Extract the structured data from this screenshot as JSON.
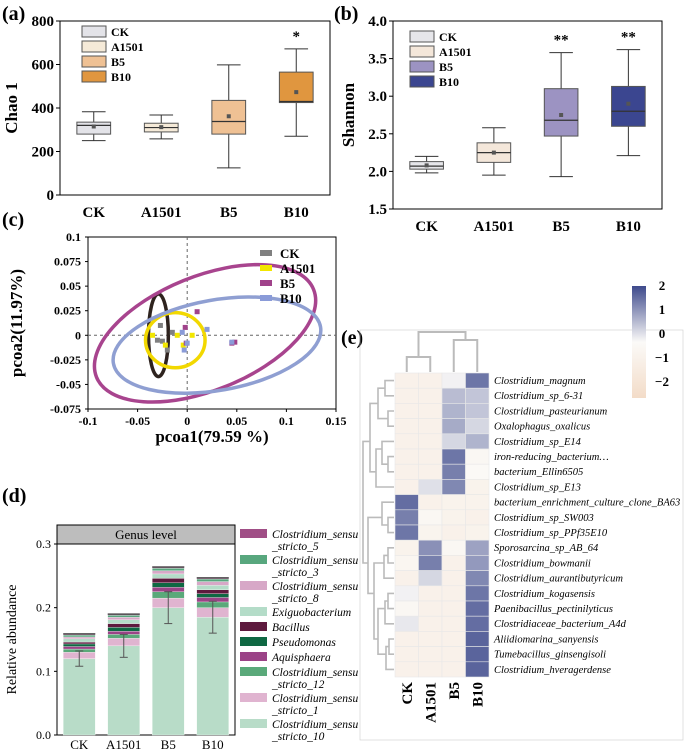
{
  "chart_data": [
    {
      "id": "a",
      "panel_label": "(a)",
      "type": "boxplot",
      "ylabel": "Chao 1",
      "ylim": [
        0,
        800
      ],
      "yticks": [
        "0",
        "200",
        "400",
        "600",
        "800"
      ],
      "categories": [
        "CK",
        "A1501",
        "B5",
        "B10"
      ],
      "legend": [
        "CK",
        "A1501",
        "B5",
        "B10"
      ],
      "colors": [
        "#e3e3e8",
        "#f5ead8",
        "#efc194",
        "#e0963f"
      ],
      "boxes": [
        {
          "min": 250,
          "q1": 280,
          "median": 320,
          "q3": 335,
          "max": 383,
          "mean": 315,
          "sig": ""
        },
        {
          "min": 258,
          "q1": 290,
          "median": 310,
          "q3": 330,
          "max": 368,
          "mean": 312,
          "sig": ""
        },
        {
          "min": 125,
          "q1": 280,
          "median": 338,
          "q3": 435,
          "max": 598,
          "mean": 362,
          "sig": ""
        },
        {
          "min": 270,
          "q1": 425,
          "median": 430,
          "q3": 565,
          "max": 672,
          "mean": 473,
          "sig": "*"
        }
      ]
    },
    {
      "id": "b",
      "panel_label": "(b)",
      "type": "boxplot",
      "ylabel": "Shannon",
      "ylim": [
        1.5,
        4.0
      ],
      "yticks": [
        "1.5",
        "2.0",
        "2.5",
        "3.0",
        "3.5",
        "4.0"
      ],
      "categories": [
        "CK",
        "A1501",
        "B5",
        "B10"
      ],
      "legend": [
        "CK",
        "A1501",
        "B5",
        "B10"
      ],
      "colors": [
        "#e6e6ea",
        "#f4e7da",
        "#9c93c2",
        "#3b4690"
      ],
      "boxes": [
        {
          "min": 1.98,
          "q1": 2.03,
          "median": 2.07,
          "q3": 2.13,
          "max": 2.2,
          "mean": 2.08,
          "sig": ""
        },
        {
          "min": 1.95,
          "q1": 2.12,
          "median": 2.25,
          "q3": 2.38,
          "max": 2.58,
          "mean": 2.25,
          "sig": ""
        },
        {
          "min": 1.93,
          "q1": 2.47,
          "median": 2.68,
          "q3": 3.1,
          "max": 3.58,
          "mean": 2.75,
          "sig": "**"
        },
        {
          "min": 2.21,
          "q1": 2.6,
          "median": 2.8,
          "q3": 3.13,
          "max": 3.62,
          "mean": 2.9,
          "sig": "**"
        }
      ]
    },
    {
      "id": "c",
      "panel_label": "(c)",
      "type": "scatter",
      "xlabel": "pcoa1(79.59 %)",
      "ylabel": "pcoa2(11.97%)",
      "xlim": [
        -0.1,
        0.15
      ],
      "ylim": [
        -0.075,
        0.1
      ],
      "xticks": [
        "-0.1",
        "-0.05",
        "0",
        "0.05",
        "0.1",
        "0.15"
      ],
      "yticks": [
        "-0.075",
        "-0.05",
        "-0.025",
        "0",
        "0.025",
        "0.05",
        "0.075",
        "0.1"
      ],
      "series": [
        {
          "name": "CK",
          "color": "#808080",
          "ellipse_color": "#2e231e",
          "points": [
            [
              -0.027,
              0.01
            ],
            [
              -0.03,
              -0.005
            ],
            [
              -0.025,
              -0.006
            ],
            [
              -0.015,
              0.003
            ],
            [
              -0.02,
              -0.015
            ]
          ],
          "ellipse": {
            "cx": -0.029,
            "cy": 0.0,
            "rx": 0.01,
            "ry": 0.042
          }
        },
        {
          "name": "A1501",
          "color": "#f2e600",
          "ellipse_color": "#f2d800",
          "points": [
            [
              -0.022,
              -0.01
            ],
            [
              -0.01,
              0.0
            ],
            [
              -0.004,
              -0.01
            ],
            [
              0.005,
              0.0
            ],
            [
              -0.035,
              0.0
            ]
          ],
          "ellipse": {
            "cx": -0.012,
            "cy": -0.005,
            "rx": 0.03,
            "ry": 0.028
          }
        },
        {
          "name": "B5",
          "color": "#a0428a",
          "ellipse_color": "#a8448e",
          "points": [
            [
              0.01,
              0.024
            ],
            [
              0.045,
              -0.008
            ],
            [
              -0.002,
              0.008
            ],
            [
              0.048,
              -0.007
            ],
            [
              -0.001,
              -0.008
            ]
          ],
          "ellipse": {
            "cx": 0.018,
            "cy": 0.002,
            "rx": 0.118,
            "ry": 0.058,
            "angle": -22
          }
        },
        {
          "name": "B10",
          "color": "#8a9bd8",
          "ellipse_color": "#8f9fd2",
          "points": [
            [
              0.02,
              0.006
            ],
            [
              -0.003,
              -0.015
            ],
            [
              0.045,
              -0.007
            ],
            [
              0.0,
              -0.008
            ],
            [
              -0.005,
              0.003
            ]
          ],
          "ellipse": {
            "cx": 0.03,
            "cy": -0.01,
            "rx": 0.106,
            "ry": 0.046,
            "angle": -10
          }
        }
      ]
    },
    {
      "id": "d",
      "panel_label": "(d)",
      "type": "stacked_bar",
      "facet_title": "Genus level",
      "ylabel": "Relative abundance",
      "ylim": [
        0,
        0.3
      ],
      "yticks": [
        "0.0",
        "0.1",
        "0.2",
        "0.3"
      ],
      "categories": [
        "CK",
        "A1501",
        "B5",
        "B10"
      ],
      "totals": [
        0.16,
        0.191,
        0.265,
        0.248
      ],
      "errors": [
        0.012,
        0.018,
        0.025,
        0.025
      ],
      "legend_items": [
        {
          "lines": [
            "Clostridium_sensu",
            "_stricto_5"
          ],
          "color": "#a04e86"
        },
        {
          "lines": [
            "Clostridium_sensu",
            "_stricto_3"
          ],
          "color": "#58a77e"
        },
        {
          "lines": [
            "Clostridium_sensu",
            "_stricto_8"
          ],
          "color": "#d7a8c7"
        },
        {
          "lines": [
            "Exiguobacterium"
          ],
          "color": "#b4dcc8"
        },
        {
          "lines": [
            "Bacillus"
          ],
          "color": "#5e1a3e"
        },
        {
          "lines": [
            "Pseudomonas"
          ],
          "color": "#0f6843"
        },
        {
          "lines": [
            "Aquisphaera"
          ],
          "color": "#9b4387"
        },
        {
          "lines": [
            "Clostridium_sensu",
            "_stricto_12"
          ],
          "color": "#5aa97a"
        },
        {
          "lines": [
            "Clostridium_sensu",
            "_stricto_1"
          ],
          "color": "#e0b4d0"
        },
        {
          "lines": [
            "Clostridium_sensu",
            "_stricto_10"
          ],
          "color": "#b8dcc8"
        }
      ],
      "series": [
        {
          "name": "Clostridium_sensu_stricto_10",
          "color": "#b8dcc8",
          "values": [
            0.12,
            0.14,
            0.2,
            0.185
          ]
        },
        {
          "name": "Clostridium_sensu_stricto_1",
          "color": "#e0b4d0",
          "values": [
            0.01,
            0.012,
            0.015,
            0.015
          ]
        },
        {
          "name": "Clostridium_sensu_stricto_12",
          "color": "#5aa97a",
          "values": [
            0.005,
            0.006,
            0.01,
            0.009
          ]
        },
        {
          "name": "Aquisphaera",
          "color": "#9b4387",
          "values": [
            0.004,
            0.005,
            0.007,
            0.007
          ]
        },
        {
          "name": "Pseudomonas",
          "color": "#0f6843",
          "values": [
            0.004,
            0.006,
            0.007,
            0.006
          ]
        },
        {
          "name": "Bacillus",
          "color": "#5e1a3e",
          "values": [
            0.003,
            0.006,
            0.007,
            0.006
          ]
        },
        {
          "name": "Exiguobacterium",
          "color": "#b4dcc8",
          "values": [
            0.005,
            0.006,
            0.007,
            0.007
          ]
        },
        {
          "name": "Clostridium_sensu_stricto_8",
          "color": "#d7a8c7",
          "values": [
            0.003,
            0.004,
            0.005,
            0.006
          ]
        },
        {
          "name": "Clostridium_sensu_stricto_3",
          "color": "#58a77e",
          "values": [
            0.003,
            0.003,
            0.004,
            0.004
          ]
        },
        {
          "name": "Clostridium_sensu_stricto_5",
          "color": "#a04e86",
          "values": [
            0.003,
            0.003,
            0.003,
            0.003
          ]
        }
      ]
    },
    {
      "id": "e",
      "panel_label": "(e)",
      "type": "heatmap",
      "columns": [
        "CK",
        "A1501",
        "B5",
        "B10"
      ],
      "rows": [
        "Clostridium_magnum",
        "Clostridium_sp_6-31",
        "Clostridium_pasteurianum",
        "Oxalophagus_oxalicus",
        "Clostridium_sp_E14",
        "iron-reducing_bacterium…",
        "bacterium_Ellin6505",
        "Clostridium_sp_E13",
        "bacterium_enrichment_culture_clone_BA63",
        "Clostridium_sp_SW003",
        "Clostridium_sp_PPf35E10",
        "Sporosarcina_sp_AB_64",
        "Clostridium_bowmanii",
        "Clostridium_aurantibutyricum",
        "Clostridium_kogasensis",
        "Paenibacillus_pectinilyticus",
        "Clostridiaceae_bacterium_A4d",
        "Aliidiomarina_sanyensis",
        "Tumebacillus_ginsengisoli",
        "Clostridium_hveragerdense"
      ],
      "values": [
        [
          -0.6,
          -0.6,
          0.1,
          1.5
        ],
        [
          -0.6,
          -0.6,
          0.7,
          0.6
        ],
        [
          -0.6,
          -0.6,
          0.8,
          0.6
        ],
        [
          -0.6,
          -0.6,
          0.9,
          0.4
        ],
        [
          -0.6,
          -0.6,
          0.4,
          0.8
        ],
        [
          -0.6,
          -0.6,
          1.5,
          -0.2
        ],
        [
          -0.6,
          -0.6,
          1.4,
          -0.1
        ],
        [
          -0.6,
          0.3,
          1.3,
          -0.5
        ],
        [
          1.6,
          -0.6,
          -0.5,
          -0.5
        ],
        [
          1.4,
          -0.2,
          -0.5,
          -0.6
        ],
        [
          1.5,
          -0.4,
          -0.6,
          -0.5
        ],
        [
          -0.5,
          1.2,
          -0.2,
          1.0
        ],
        [
          -0.3,
          1.4,
          -0.6,
          1.1
        ],
        [
          -0.6,
          0.4,
          -0.6,
          1.3
        ],
        [
          0.1,
          -0.6,
          -0.6,
          1.5
        ],
        [
          -0.2,
          -0.6,
          -0.6,
          1.6
        ],
        [
          0.2,
          -0.6,
          -0.6,
          1.6
        ],
        [
          -0.6,
          -0.6,
          -0.6,
          1.7
        ],
        [
          -0.6,
          -0.6,
          -0.6,
          1.7
        ],
        [
          -0.6,
          -0.6,
          -0.6,
          1.7
        ]
      ],
      "colorbar_ticks": [
        "2",
        "1",
        "0",
        "−1",
        "−2"
      ],
      "color_high": "#3e4a8c",
      "color_mid": "#fbfaf8",
      "color_low": "#f3dcc8"
    }
  ]
}
